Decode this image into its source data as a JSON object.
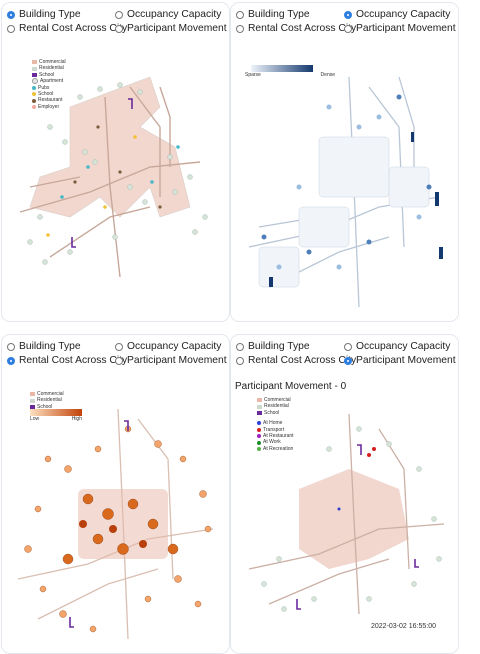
{
  "options": {
    "building_type": "Building Type",
    "occupancy_capacity": "Occupancy Capacity",
    "rental_cost": "Rental Cost Across City",
    "participant_movement": "Participant Movement"
  },
  "panels": [
    {
      "selected": "building_type"
    },
    {
      "selected": "occupancy_capacity"
    },
    {
      "selected": "rental_cost"
    },
    {
      "selected": "participant_movement"
    }
  ],
  "legend_building": {
    "commercial": "Commercial",
    "residential": "Residential",
    "school": "School",
    "apartment": "Apartment",
    "pubs": "Pubs",
    "school_point": "School",
    "restaurant": "Restaurant",
    "employer": "Employer"
  },
  "legend_occupancy": {
    "low": "Sparse",
    "high": "Dense"
  },
  "legend_rental": {
    "commercial": "Commercial",
    "residential": "Residential",
    "school": "School",
    "low": "Low",
    "high": "High"
  },
  "legend_movement": {
    "commercial": "Commercial",
    "residential": "Residential",
    "school": "School",
    "at_home": "At Home",
    "transport": "Transport",
    "at_restaurant": "At Restaurant",
    "at_work": "At Work",
    "at_recreation": "At Recreation"
  },
  "movement_title": "Participant Movement - 0",
  "timestamp": "2022-03-02 16:55:00",
  "colors": {
    "commercial": "#e8b7a8",
    "residential": "#cdd9cf",
    "school": "#6a2a9c",
    "accent": "#2f7fe0",
    "blue_low": "#eef4fb",
    "blue_high": "#14396e",
    "orange_low": "#fde0c0",
    "orange_high": "#c2430a",
    "at_home": "#2d3fd6",
    "transport": "#d62020",
    "at_restaurant": "#a020c0",
    "at_work": "#1a8c2a",
    "at_recreation": "#56b045"
  }
}
